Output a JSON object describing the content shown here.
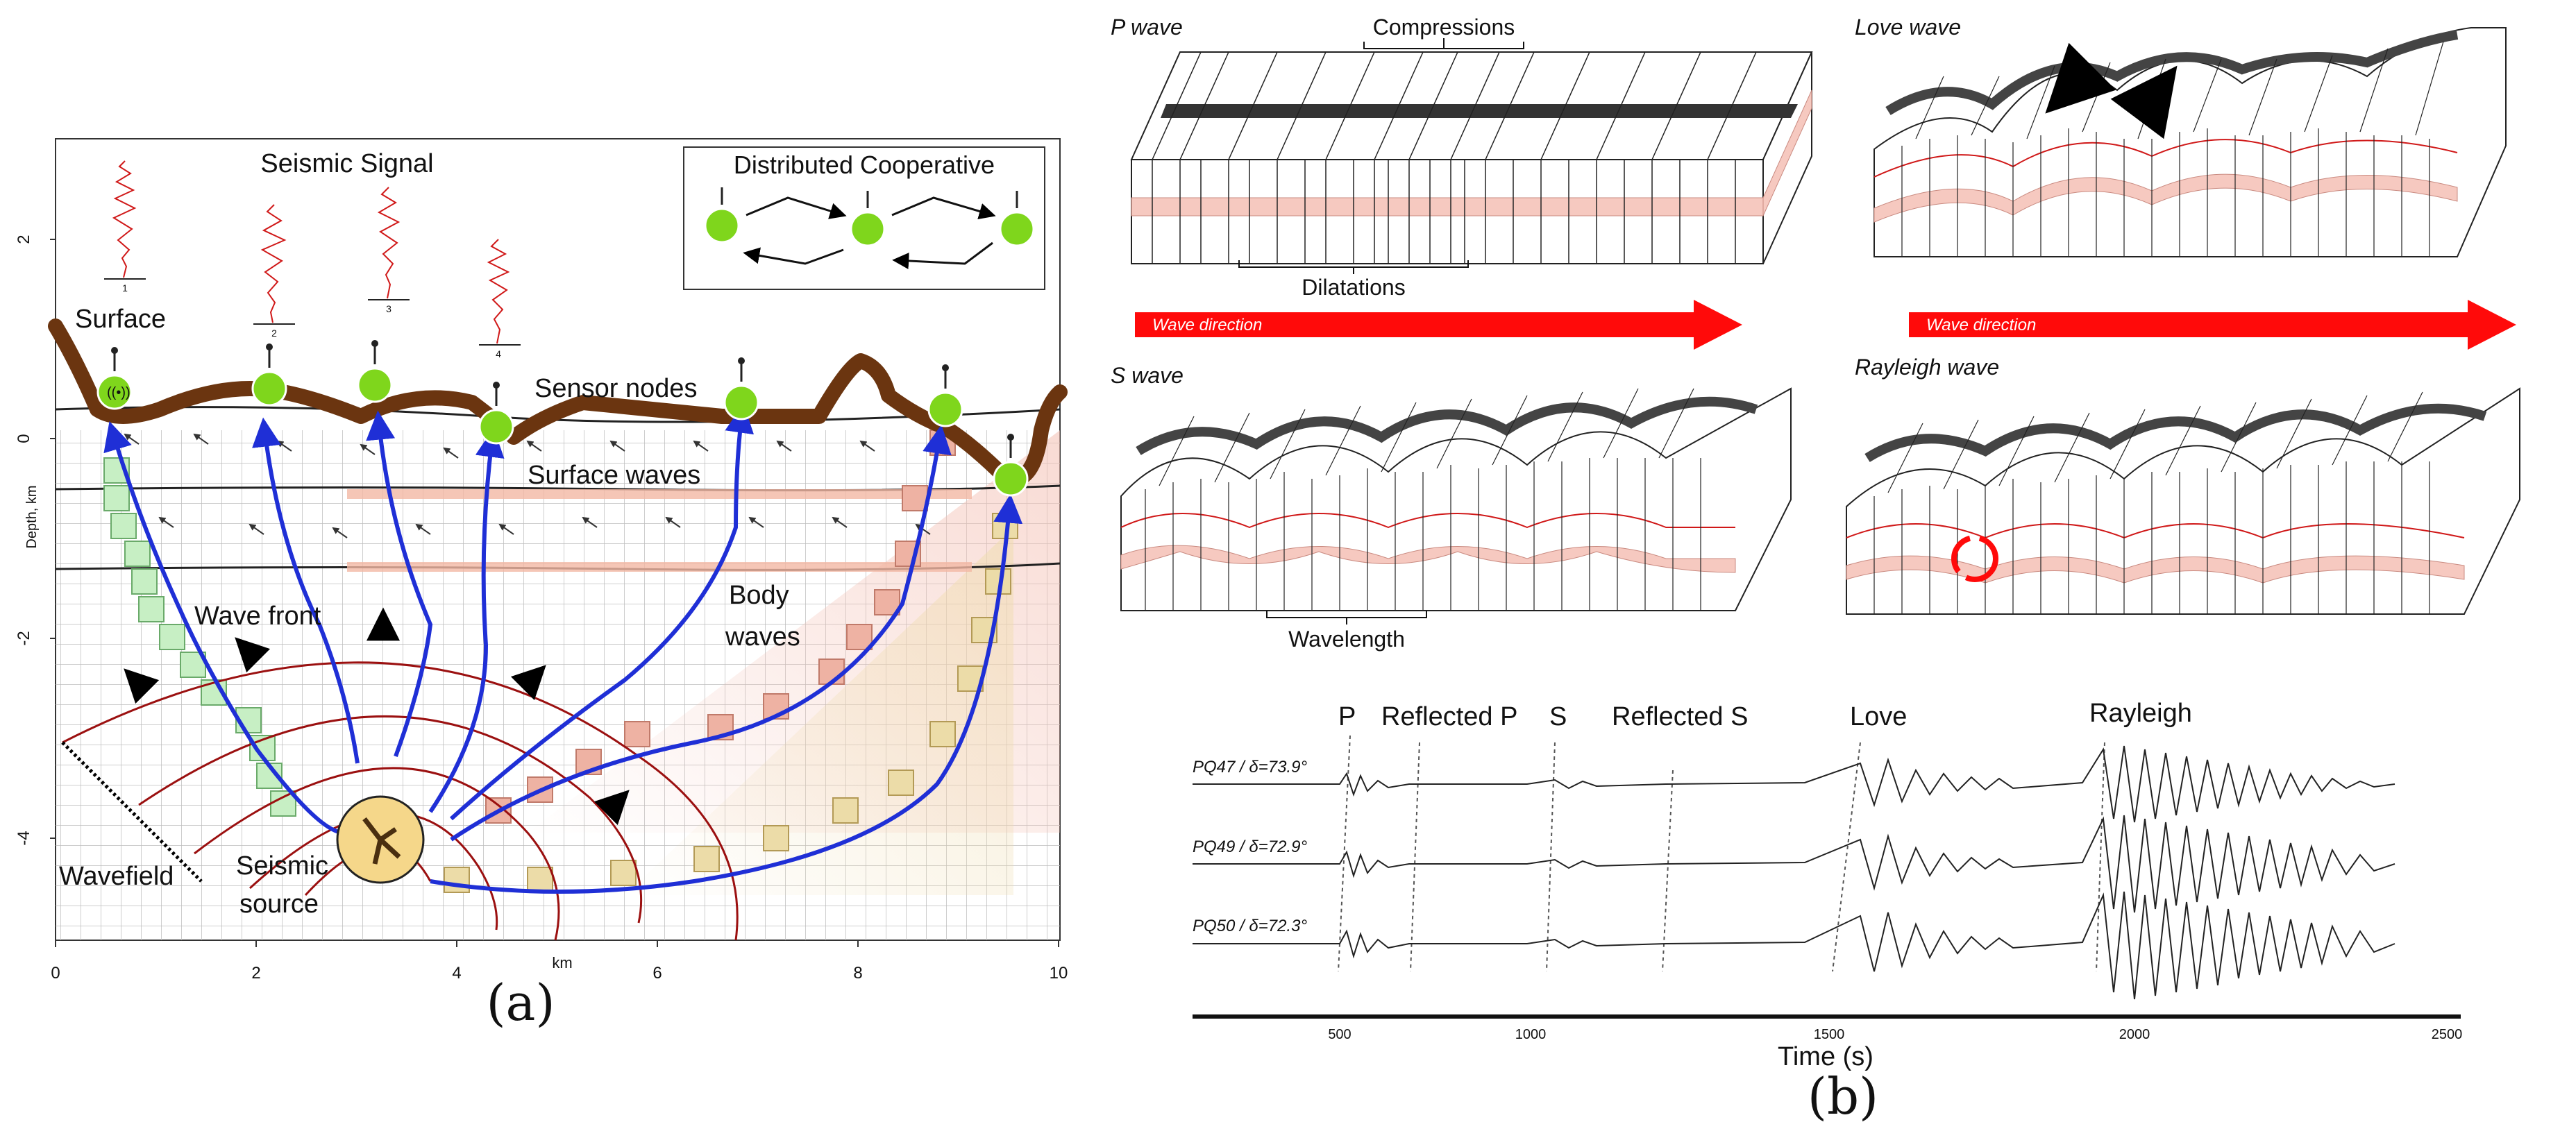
{
  "panel_a": {
    "caption": "(a)",
    "signal_title": "Seismic Signal",
    "cooperative_title": "Distributed Cooperative",
    "labels": {
      "surface": "Surface",
      "sensor_nodes": "Sensor nodes",
      "surface_waves": "Surface waves",
      "body_waves_1": "Body",
      "body_waves_2": "waves",
      "wave_front": "Wave front",
      "wavefield": "Wavefield",
      "seismic_source_1": "Seismic",
      "seismic_source_2": "source"
    },
    "signal_ids": [
      "1",
      "2",
      "3",
      "4"
    ],
    "y_axis_label": "Depth, km",
    "y_ticks": [
      "2",
      "0",
      "-2",
      "-4"
    ],
    "x_axis_label": "km",
    "x_ticks": [
      "0",
      "2",
      "4",
      "6",
      "8",
      "10"
    ]
  },
  "panel_b": {
    "caption": "(b)",
    "p_wave": {
      "title": "P wave",
      "compressions": "Compressions",
      "dilatations": "Dilatations"
    },
    "s_wave": {
      "title": "S wave",
      "wavelength": "Wavelength"
    },
    "love_wave": {
      "title": "Love wave"
    },
    "rayleigh_wave": {
      "title": "Rayleigh wave"
    },
    "wave_direction": "Wave direction",
    "seismogram": {
      "phases": [
        "P",
        "Reflected P",
        "S",
        "Reflected S",
        "Love",
        "Rayleigh"
      ],
      "traces": [
        "PQ47 / δ=73.9°",
        "PQ49 / δ=72.9°",
        "PQ50 / δ=72.3°"
      ],
      "x_ticks": [
        "500",
        "1000",
        "1500",
        "2000",
        "2500"
      ],
      "x_label": "Time (s)"
    }
  },
  "colors": {
    "crust": "#6b3510",
    "ray": "#1f2fd6",
    "wavefront": "#9b1010",
    "node": "#7fd61c",
    "arrow": "#ff0a0a",
    "layer": "#f6c9c0",
    "source": "#f5d78a"
  }
}
